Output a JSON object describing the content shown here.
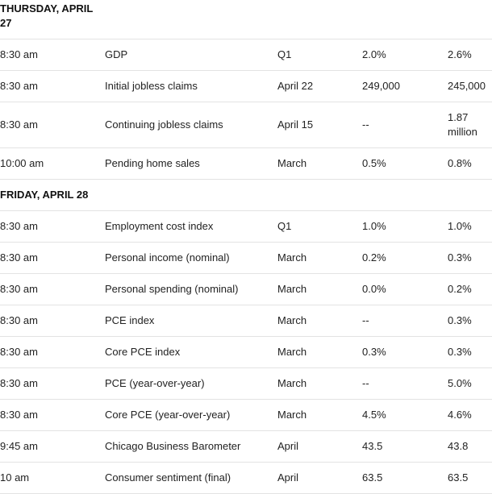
{
  "days": [
    {
      "heading": "THURSDAY, APRIL 27",
      "rows": [
        {
          "time": "8:30 am",
          "event": "GDP",
          "period": "Q1",
          "forecast": "2.0%",
          "previous": "2.6%"
        },
        {
          "time": "8:30 am",
          "event": "Initial jobless claims",
          "period": "April 22",
          "forecast": "249,000",
          "previous": "245,000"
        },
        {
          "time": "8:30 am",
          "event": "Continuing jobless claims",
          "period": "April 15",
          "forecast": "--",
          "previous": "1.87 million"
        },
        {
          "time": "10:00 am",
          "event": "Pending home sales",
          "period": "March",
          "forecast": "0.5%",
          "previous": "0.8%"
        }
      ]
    },
    {
      "heading": "FRIDAY, APRIL 28",
      "rows": [
        {
          "time": "8:30 am",
          "event": "Employment cost index",
          "period": "Q1",
          "forecast": "1.0%",
          "previous": "1.0%"
        },
        {
          "time": "8:30 am",
          "event": "Personal income (nominal)",
          "period": "March",
          "forecast": "0.2%",
          "previous": "0.3%"
        },
        {
          "time": "8:30 am",
          "event": "Personal spending (nominal)",
          "period": "March",
          "forecast": "0.0%",
          "previous": "0.2%"
        },
        {
          "time": "8:30 am",
          "event": "PCE index",
          "period": "March",
          "forecast": "--",
          "previous": "0.3%"
        },
        {
          "time": "8:30 am",
          "event": "Core PCE index",
          "period": "March",
          "forecast": "0.3%",
          "previous": "0.3%"
        },
        {
          "time": "8:30 am",
          "event": "PCE (year-over-year)",
          "period": "March",
          "forecast": "--",
          "previous": "5.0%"
        },
        {
          "time": "8:30 am",
          "event": "Core PCE (year-over-year)",
          "period": "March",
          "forecast": "4.5%",
          "previous": "4.6%"
        },
        {
          "time": "9:45 am",
          "event": "Chicago Business Barometer",
          "period": "April",
          "forecast": "43.5",
          "previous": "43.8"
        },
        {
          "time": "10 am",
          "event": "Consumer sentiment (final)",
          "period": "April",
          "forecast": "63.5",
          "previous": "63.5"
        }
      ]
    }
  ]
}
